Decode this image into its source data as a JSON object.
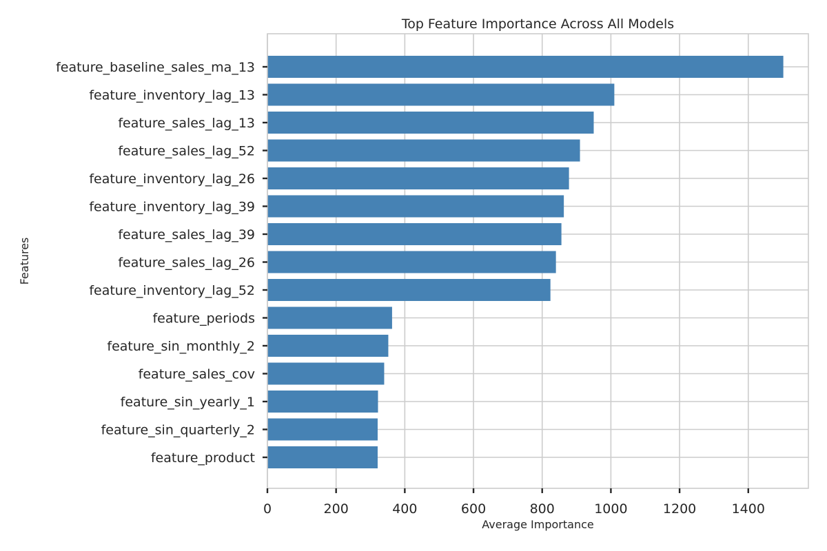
{
  "chart_data": {
    "type": "bar",
    "orientation": "horizontal",
    "title": "Top Feature Importance Across All Models",
    "xlabel": "Average Importance",
    "ylabel": "Features",
    "xlim": [
      0,
      1575
    ],
    "xticks": [
      0,
      200,
      400,
      600,
      800,
      1000,
      1200,
      1400
    ],
    "grid": true,
    "bar_color": "#4682b4",
    "categories": [
      "feature_baseline_sales_ma_13",
      "feature_inventory_lag_13",
      "feature_sales_lag_13",
      "feature_sales_lag_52",
      "feature_inventory_lag_26",
      "feature_inventory_lag_39",
      "feature_sales_lag_39",
      "feature_sales_lag_26",
      "feature_inventory_lag_52",
      "feature_periods",
      "feature_sin_monthly_2",
      "feature_sales_cov",
      "feature_sin_yearly_1",
      "feature_sin_quarterly_2",
      "feature_product"
    ],
    "values": [
      1502,
      1010,
      950,
      910,
      878,
      863,
      856,
      840,
      824,
      363,
      352,
      340,
      322,
      321,
      321
    ]
  }
}
